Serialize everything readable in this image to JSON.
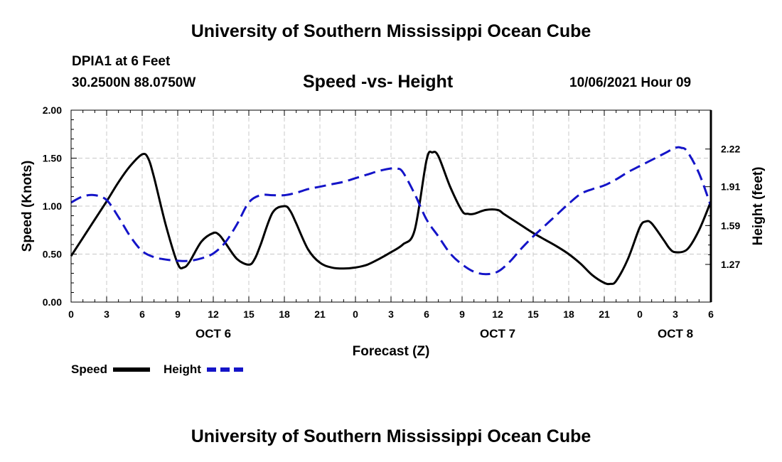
{
  "header": {
    "title": "University of Southern Mississippi Ocean Cube",
    "station": "DPIA1 at 6 Feet",
    "coords": "30.2500N  88.0750W",
    "subtitle": "Speed -vs- Height",
    "datetime": "10/06/2021 Hour 09"
  },
  "footer": {
    "title": "University of Southern Mississippi Ocean Cube"
  },
  "chart_data": {
    "type": "line",
    "title": "Speed -vs- Height",
    "xlabel": "Forecast (Z)",
    "ylabel": "Speed (Knots)",
    "y2label": "Height (feet)",
    "xlim": [
      0,
      54
    ],
    "ylim": [
      0,
      2.0
    ],
    "y2lim": [
      0.96,
      2.54
    ],
    "x_ticks": [
      0,
      3,
      6,
      9,
      12,
      15,
      18,
      21,
      24,
      27,
      30,
      33,
      36,
      39,
      42,
      45,
      48,
      51,
      54
    ],
    "x_tick_labels": [
      "0",
      "3",
      "6",
      "9",
      "12",
      "15",
      "18",
      "21",
      "0",
      "3",
      "6",
      "9",
      "12",
      "15",
      "18",
      "21",
      "0",
      "3",
      "6"
    ],
    "y_ticks": [
      0,
      0.5,
      1.0,
      1.5,
      2.0
    ],
    "y_tick_labels": [
      "0.00",
      "0.50",
      "1.00",
      "1.50",
      "2.00"
    ],
    "y2_ticks": [
      1.27,
      1.59,
      1.91,
      2.22
    ],
    "y2_tick_labels": [
      "1.27",
      "1.59",
      "1.91",
      "2.22"
    ],
    "date_labels": [
      {
        "x": 12,
        "label": "OCT 6"
      },
      {
        "x": 36,
        "label": "OCT 7"
      },
      {
        "x": 51,
        "label": "OCT 8"
      }
    ],
    "grid": true,
    "legend": [
      {
        "label": "Speed",
        "color": "#000000",
        "style": "solid"
      },
      {
        "label": "Height",
        "color": "#1414c8",
        "style": "dashed"
      }
    ],
    "series": [
      {
        "name": "Speed",
        "axis": "left",
        "color": "#000000",
        "x": [
          0,
          1,
          2,
          3,
          4,
          5,
          6,
          6.5,
          7,
          8,
          9,
          9.5,
          10,
          11,
          12,
          12.5,
          13,
          14,
          15,
          15.5,
          16,
          17,
          18,
          18.5,
          19,
          20,
          21,
          22,
          23,
          24,
          25,
          26,
          27,
          28,
          29,
          30,
          30.5,
          31,
          32,
          33,
          33.5,
          34,
          35,
          36,
          36.5,
          37,
          38,
          39,
          40,
          41,
          42,
          43,
          44,
          45,
          45.5,
          46,
          47,
          48,
          48.5,
          49,
          50,
          50.5,
          51,
          52,
          53,
          54
        ],
        "values": [
          0.48,
          0.67,
          0.86,
          1.05,
          1.25,
          1.42,
          1.54,
          1.5,
          1.3,
          0.8,
          0.4,
          0.36,
          0.42,
          0.63,
          0.72,
          0.7,
          0.62,
          0.45,
          0.39,
          0.45,
          0.6,
          0.93,
          1.0,
          0.95,
          0.82,
          0.55,
          0.41,
          0.36,
          0.35,
          0.36,
          0.39,
          0.45,
          0.52,
          0.6,
          0.75,
          1.48,
          1.56,
          1.52,
          1.2,
          0.95,
          0.92,
          0.92,
          0.96,
          0.96,
          0.92,
          0.88,
          0.8,
          0.72,
          0.65,
          0.58,
          0.5,
          0.4,
          0.28,
          0.2,
          0.19,
          0.22,
          0.45,
          0.78,
          0.84,
          0.82,
          0.65,
          0.56,
          0.52,
          0.55,
          0.75,
          1.05
        ]
      },
      {
        "name": "Height",
        "axis": "right",
        "color": "#1414c8",
        "x": [
          0,
          1,
          2,
          3,
          4,
          5,
          6,
          7,
          8,
          9,
          10,
          11,
          12,
          13,
          14,
          15,
          16,
          17,
          18,
          19,
          20,
          21,
          22,
          23,
          24,
          25,
          26,
          27,
          27.5,
          28,
          29,
          30,
          31,
          32,
          33,
          34,
          35,
          36,
          37,
          38,
          39,
          40,
          41,
          42,
          43,
          44,
          45,
          46,
          47,
          48,
          49,
          50,
          51,
          51.5,
          52,
          53,
          54
        ],
        "values": [
          1.78,
          1.83,
          1.84,
          1.8,
          1.66,
          1.5,
          1.38,
          1.33,
          1.31,
          1.3,
          1.3,
          1.32,
          1.36,
          1.45,
          1.6,
          1.78,
          1.84,
          1.84,
          1.84,
          1.86,
          1.89,
          1.91,
          1.93,
          1.95,
          1.98,
          2.01,
          2.04,
          2.06,
          2.06,
          2.03,
          1.85,
          1.64,
          1.5,
          1.36,
          1.27,
          1.21,
          1.19,
          1.21,
          1.29,
          1.4,
          1.5,
          1.59,
          1.68,
          1.77,
          1.85,
          1.89,
          1.92,
          1.97,
          2.03,
          2.08,
          2.13,
          2.18,
          2.23,
          2.23,
          2.2,
          2.02,
          1.75
        ]
      }
    ]
  }
}
